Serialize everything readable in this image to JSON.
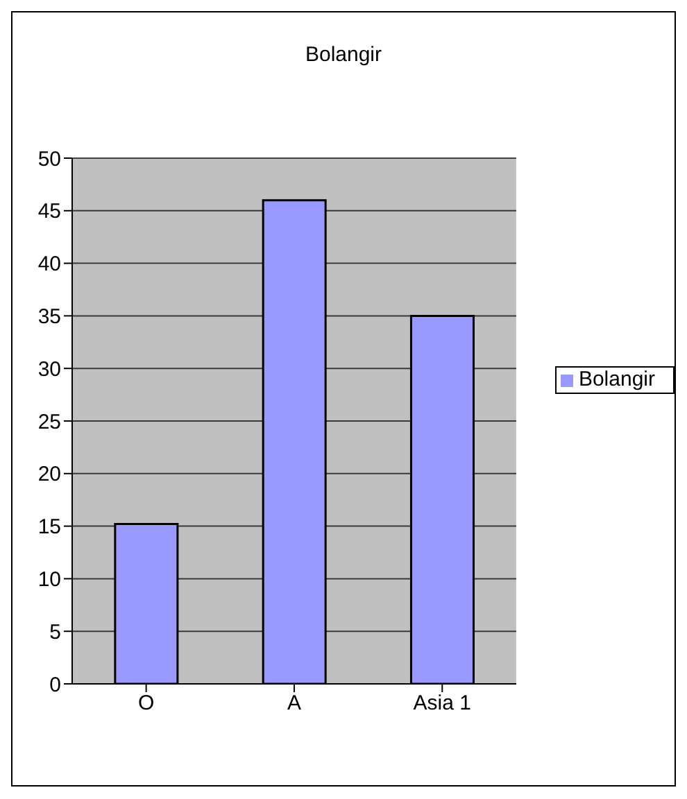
{
  "chart_data": {
    "type": "bar",
    "title": "Bolangir",
    "categories": [
      "O",
      "A",
      "Asia 1"
    ],
    "series": [
      {
        "name": "Bolangir",
        "color": "#9999ff",
        "values": [
          15.2,
          46,
          35
        ]
      }
    ],
    "ylim": [
      0,
      50
    ],
    "yticks": [
      0,
      5,
      10,
      15,
      20,
      25,
      30,
      35,
      40,
      45,
      50
    ],
    "grid": "y",
    "legend": "right"
  }
}
